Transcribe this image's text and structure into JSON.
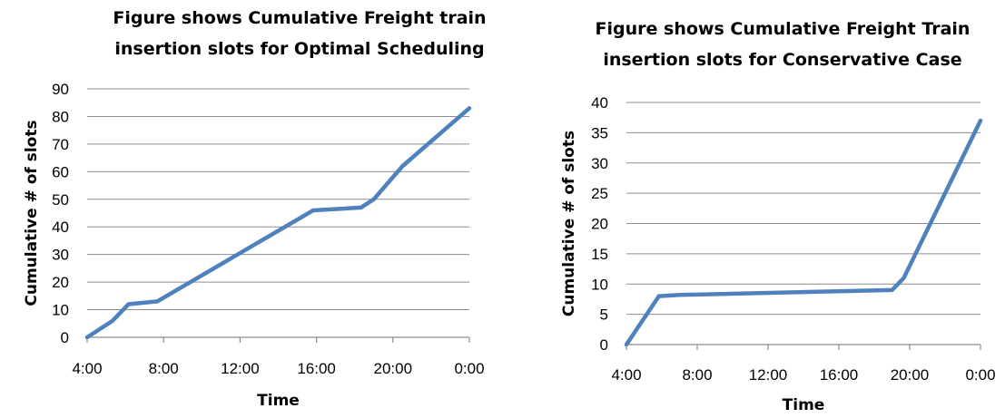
{
  "chart_data": [
    {
      "type": "line",
      "title": "Figure shows Cumulative Freight train insertion slots for Optimal Scheduling",
      "title_lines": [
        "Figure shows Cumulative Freight train",
        "insertion slots for Optimal Scheduling"
      ],
      "xlabel": "Time",
      "ylabel": "Cumulative # of slots",
      "x_ticks": [
        "4:00",
        "8:00",
        "12:00",
        "16:00",
        "20:00",
        "0:00"
      ],
      "xlim": [
        "4:00",
        "0:00"
      ],
      "y_ticks": [
        0,
        10,
        20,
        30,
        40,
        50,
        60,
        70,
        80,
        90
      ],
      "ylim": [
        0,
        90
      ],
      "grid": "horizontal",
      "legend": "none",
      "series": [
        {
          "x": [
            "4:00",
            "5:20",
            "6:10",
            "7:40",
            "15:50",
            "18:20",
            "19:00",
            "20:30",
            "24:00"
          ],
          "values": [
            0,
            6,
            12,
            13,
            46,
            47,
            50,
            62,
            83
          ],
          "color": "#4f81bd"
        }
      ]
    },
    {
      "type": "line",
      "title": "Figure shows Cumulative Freight Train insertion slots for Conservative Case",
      "title_lines": [
        "Figure shows Cumulative Freight Train",
        "insertion slots for Conservative Case"
      ],
      "xlabel": "Time",
      "ylabel": "Cumulative # of slots",
      "x_ticks": [
        "4:00",
        "8:00",
        "12:00",
        "16:00",
        "20:00",
        "0:00"
      ],
      "xlim": [
        "4:00",
        "0:00"
      ],
      "y_ticks": [
        0,
        5,
        10,
        15,
        20,
        25,
        30,
        35,
        40
      ],
      "ylim": [
        0,
        40
      ],
      "grid": "horizontal",
      "legend": "none",
      "series": [
        {
          "x": [
            "4:00",
            "5:50",
            "7:00",
            "19:00",
            "19:40",
            "23:40",
            "24:00"
          ],
          "values": [
            0,
            8,
            8.2,
            9,
            11,
            35,
            37
          ],
          "color": "#4f81bd"
        }
      ]
    }
  ]
}
